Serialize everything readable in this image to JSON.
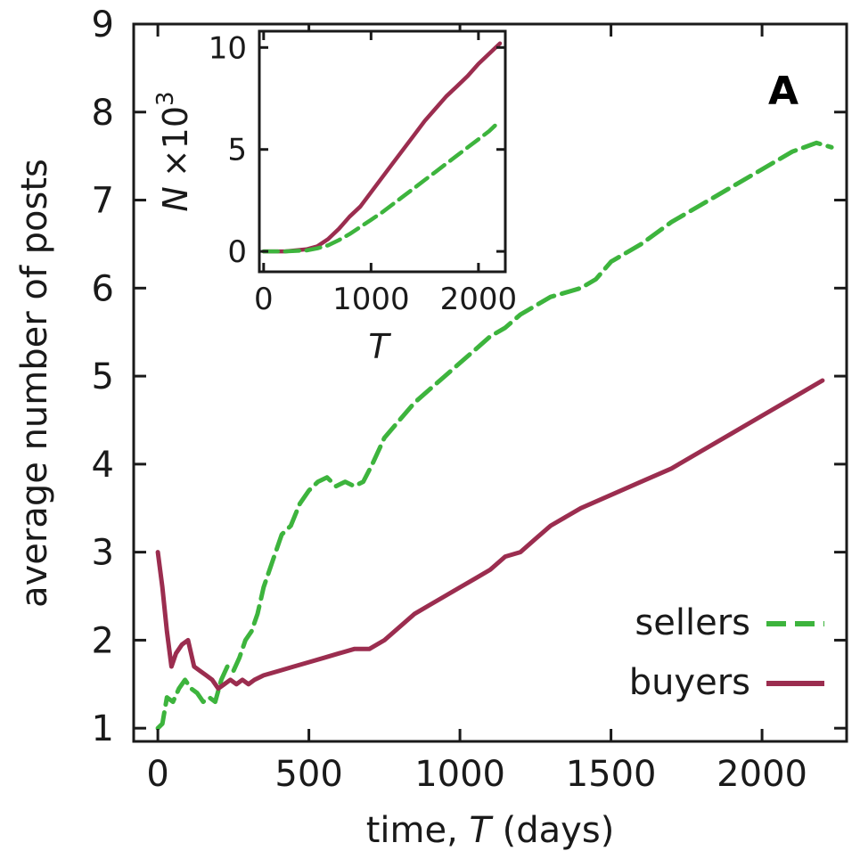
{
  "chart_data": [
    {
      "type": "line",
      "panel_label": "A",
      "xlabel_prefix": "time, ",
      "xlabel_var": "T",
      "xlabel_suffix": " (days)",
      "ylabel": "average number of posts",
      "xlim": [
        -80,
        2280
      ],
      "ylim": [
        0.85,
        9.0
      ],
      "xticks": [
        0,
        500,
        1000,
        1500,
        2000
      ],
      "yticks": [
        1,
        2,
        3,
        4,
        5,
        6,
        7,
        8,
        9
      ],
      "legend_position": "bottom-right",
      "series": [
        {
          "name": "sellers",
          "color": "#3db43d",
          "dash": "dashed",
          "x": [
            0,
            15,
            30,
            50,
            70,
            90,
            110,
            130,
            150,
            170,
            190,
            210,
            230,
            250,
            270,
            290,
            310,
            330,
            350,
            380,
            410,
            440,
            470,
            500,
            530,
            560,
            590,
            620,
            650,
            680,
            710,
            750,
            800,
            850,
            900,
            950,
            1000,
            1050,
            1100,
            1150,
            1200,
            1250,
            1300,
            1350,
            1400,
            1450,
            1500,
            1600,
            1700,
            1800,
            1900,
            2000,
            2100,
            2180,
            2230
          ],
          "y": [
            1.0,
            1.05,
            1.35,
            1.3,
            1.45,
            1.55,
            1.45,
            1.4,
            1.3,
            1.35,
            1.3,
            1.55,
            1.7,
            1.65,
            1.8,
            2.0,
            2.1,
            2.3,
            2.6,
            2.9,
            3.2,
            3.3,
            3.55,
            3.7,
            3.8,
            3.85,
            3.75,
            3.8,
            3.75,
            3.8,
            4.0,
            4.3,
            4.5,
            4.7,
            4.85,
            5.0,
            5.15,
            5.3,
            5.45,
            5.55,
            5.7,
            5.8,
            5.9,
            5.95,
            6.0,
            6.1,
            6.3,
            6.5,
            6.75,
            6.95,
            7.15,
            7.35,
            7.55,
            7.65,
            7.6
          ]
        },
        {
          "name": "buyers",
          "color": "#9b2d4f",
          "dash": "solid",
          "x": [
            0,
            15,
            30,
            45,
            60,
            80,
            100,
            120,
            140,
            160,
            180,
            200,
            220,
            240,
            260,
            280,
            300,
            320,
            350,
            400,
            450,
            500,
            550,
            600,
            650,
            700,
            750,
            800,
            850,
            900,
            950,
            1000,
            1050,
            1100,
            1150,
            1200,
            1250,
            1300,
            1400,
            1500,
            1600,
            1700,
            1800,
            1900,
            2000,
            2100,
            2200
          ],
          "y": [
            3.0,
            2.6,
            2.1,
            1.7,
            1.85,
            1.95,
            2.0,
            1.7,
            1.65,
            1.6,
            1.55,
            1.45,
            1.5,
            1.55,
            1.5,
            1.55,
            1.5,
            1.55,
            1.6,
            1.65,
            1.7,
            1.75,
            1.8,
            1.85,
            1.9,
            1.9,
            2.0,
            2.15,
            2.3,
            2.4,
            2.5,
            2.6,
            2.7,
            2.8,
            2.95,
            3.0,
            3.15,
            3.3,
            3.5,
            3.65,
            3.8,
            3.95,
            4.15,
            4.35,
            4.55,
            4.75,
            4.95
          ]
        }
      ]
    },
    {
      "type": "line",
      "inset": true,
      "xlabel": "T",
      "ylabel_var": "N",
      "ylabel_factor": "×10",
      "ylabel_exp": "3",
      "xlim": [
        -40,
        2250
      ],
      "ylim": [
        -1.0,
        10.8
      ],
      "xticks": [
        0,
        1000,
        2000
      ],
      "yticks": [
        0,
        5,
        10
      ],
      "series": [
        {
          "name": "buyers",
          "color": "#9b2d4f",
          "dash": "solid",
          "x": [
            0,
            200,
            400,
            500,
            600,
            700,
            800,
            900,
            1000,
            1100,
            1200,
            1300,
            1400,
            1500,
            1600,
            1700,
            1800,
            1900,
            2000,
            2100,
            2200
          ],
          "y": [
            0,
            0.0,
            0.1,
            0.25,
            0.6,
            1.1,
            1.7,
            2.2,
            2.9,
            3.6,
            4.3,
            5.0,
            5.7,
            6.4,
            7.0,
            7.6,
            8.1,
            8.6,
            9.2,
            9.7,
            10.2
          ]
        },
        {
          "name": "sellers",
          "color": "#3db43d",
          "dash": "dashed",
          "x": [
            0,
            200,
            400,
            500,
            600,
            700,
            800,
            900,
            1000,
            1100,
            1200,
            1300,
            1400,
            1500,
            1600,
            1700,
            1800,
            1900,
            2000,
            2100,
            2200
          ],
          "y": [
            0,
            0.0,
            0.05,
            0.15,
            0.3,
            0.55,
            0.85,
            1.2,
            1.55,
            1.9,
            2.3,
            2.7,
            3.1,
            3.5,
            3.9,
            4.3,
            4.7,
            5.1,
            5.5,
            5.9,
            6.4
          ]
        }
      ]
    }
  ]
}
